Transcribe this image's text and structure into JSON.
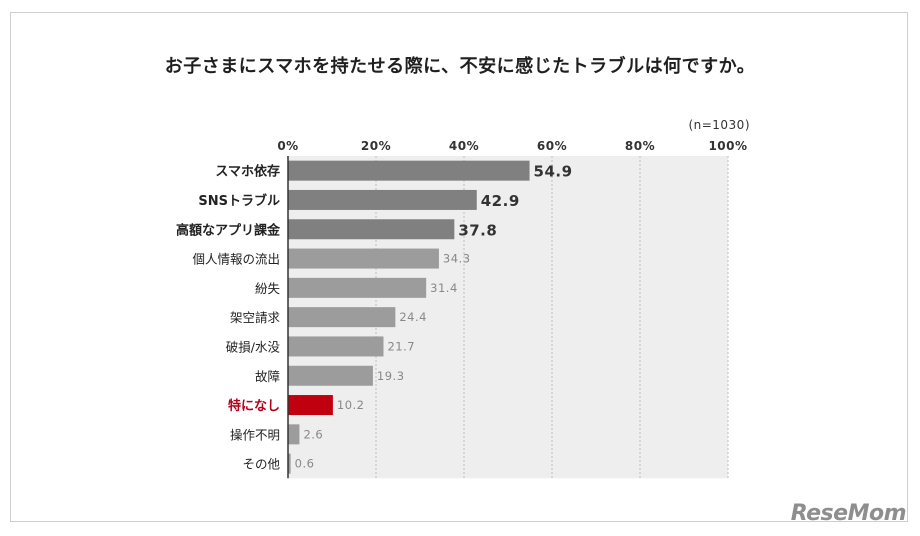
{
  "title": "お子さまにスマホを持たせる際に、不安に感じたトラブルは何ですか。",
  "sample_note": "(n=1030)",
  "logo_text": "ReseMom",
  "colors": {
    "bar_dark": "#808080",
    "bar_light": "#9c9c9c",
    "bar_highlight": "#c0000f",
    "highlight_label": "#b3001b",
    "panel_bg": "#eeeeee",
    "grid": "#bdbdbd"
  },
  "chart_data": {
    "type": "bar",
    "orientation": "horizontal",
    "title": "お子さまにスマホを持たせる際に、不安に感じたトラブルは何ですか。",
    "categories": [
      "スマホ依存",
      "SNSトラブル",
      "高額なアプリ課金",
      "個人情報の流出",
      "紛失",
      "架空請求",
      "破損/水没",
      "故障",
      "特になし",
      "操作不明",
      "その他"
    ],
    "values": [
      54.9,
      42.9,
      37.8,
      34.3,
      31.4,
      24.4,
      21.7,
      19.3,
      10.2,
      2.6,
      0.6
    ],
    "value_labels": [
      "54.9",
      "42.9",
      "37.8",
      "34.3",
      "31.4",
      "24.4",
      "21.7",
      "19.3",
      "10.2",
      "2.6",
      "0.6"
    ],
    "emphasized": [
      true,
      true,
      true,
      false,
      false,
      false,
      false,
      false,
      false,
      false,
      false
    ],
    "highlighted_category": "特になし",
    "xlim": [
      0,
      100
    ],
    "ticks": [
      0,
      20,
      40,
      60,
      80,
      100
    ],
    "tick_labels": [
      "0%",
      "20%",
      "40%",
      "60%",
      "80%",
      "100%"
    ],
    "grid": true,
    "xlabel": "",
    "ylabel": ""
  }
}
